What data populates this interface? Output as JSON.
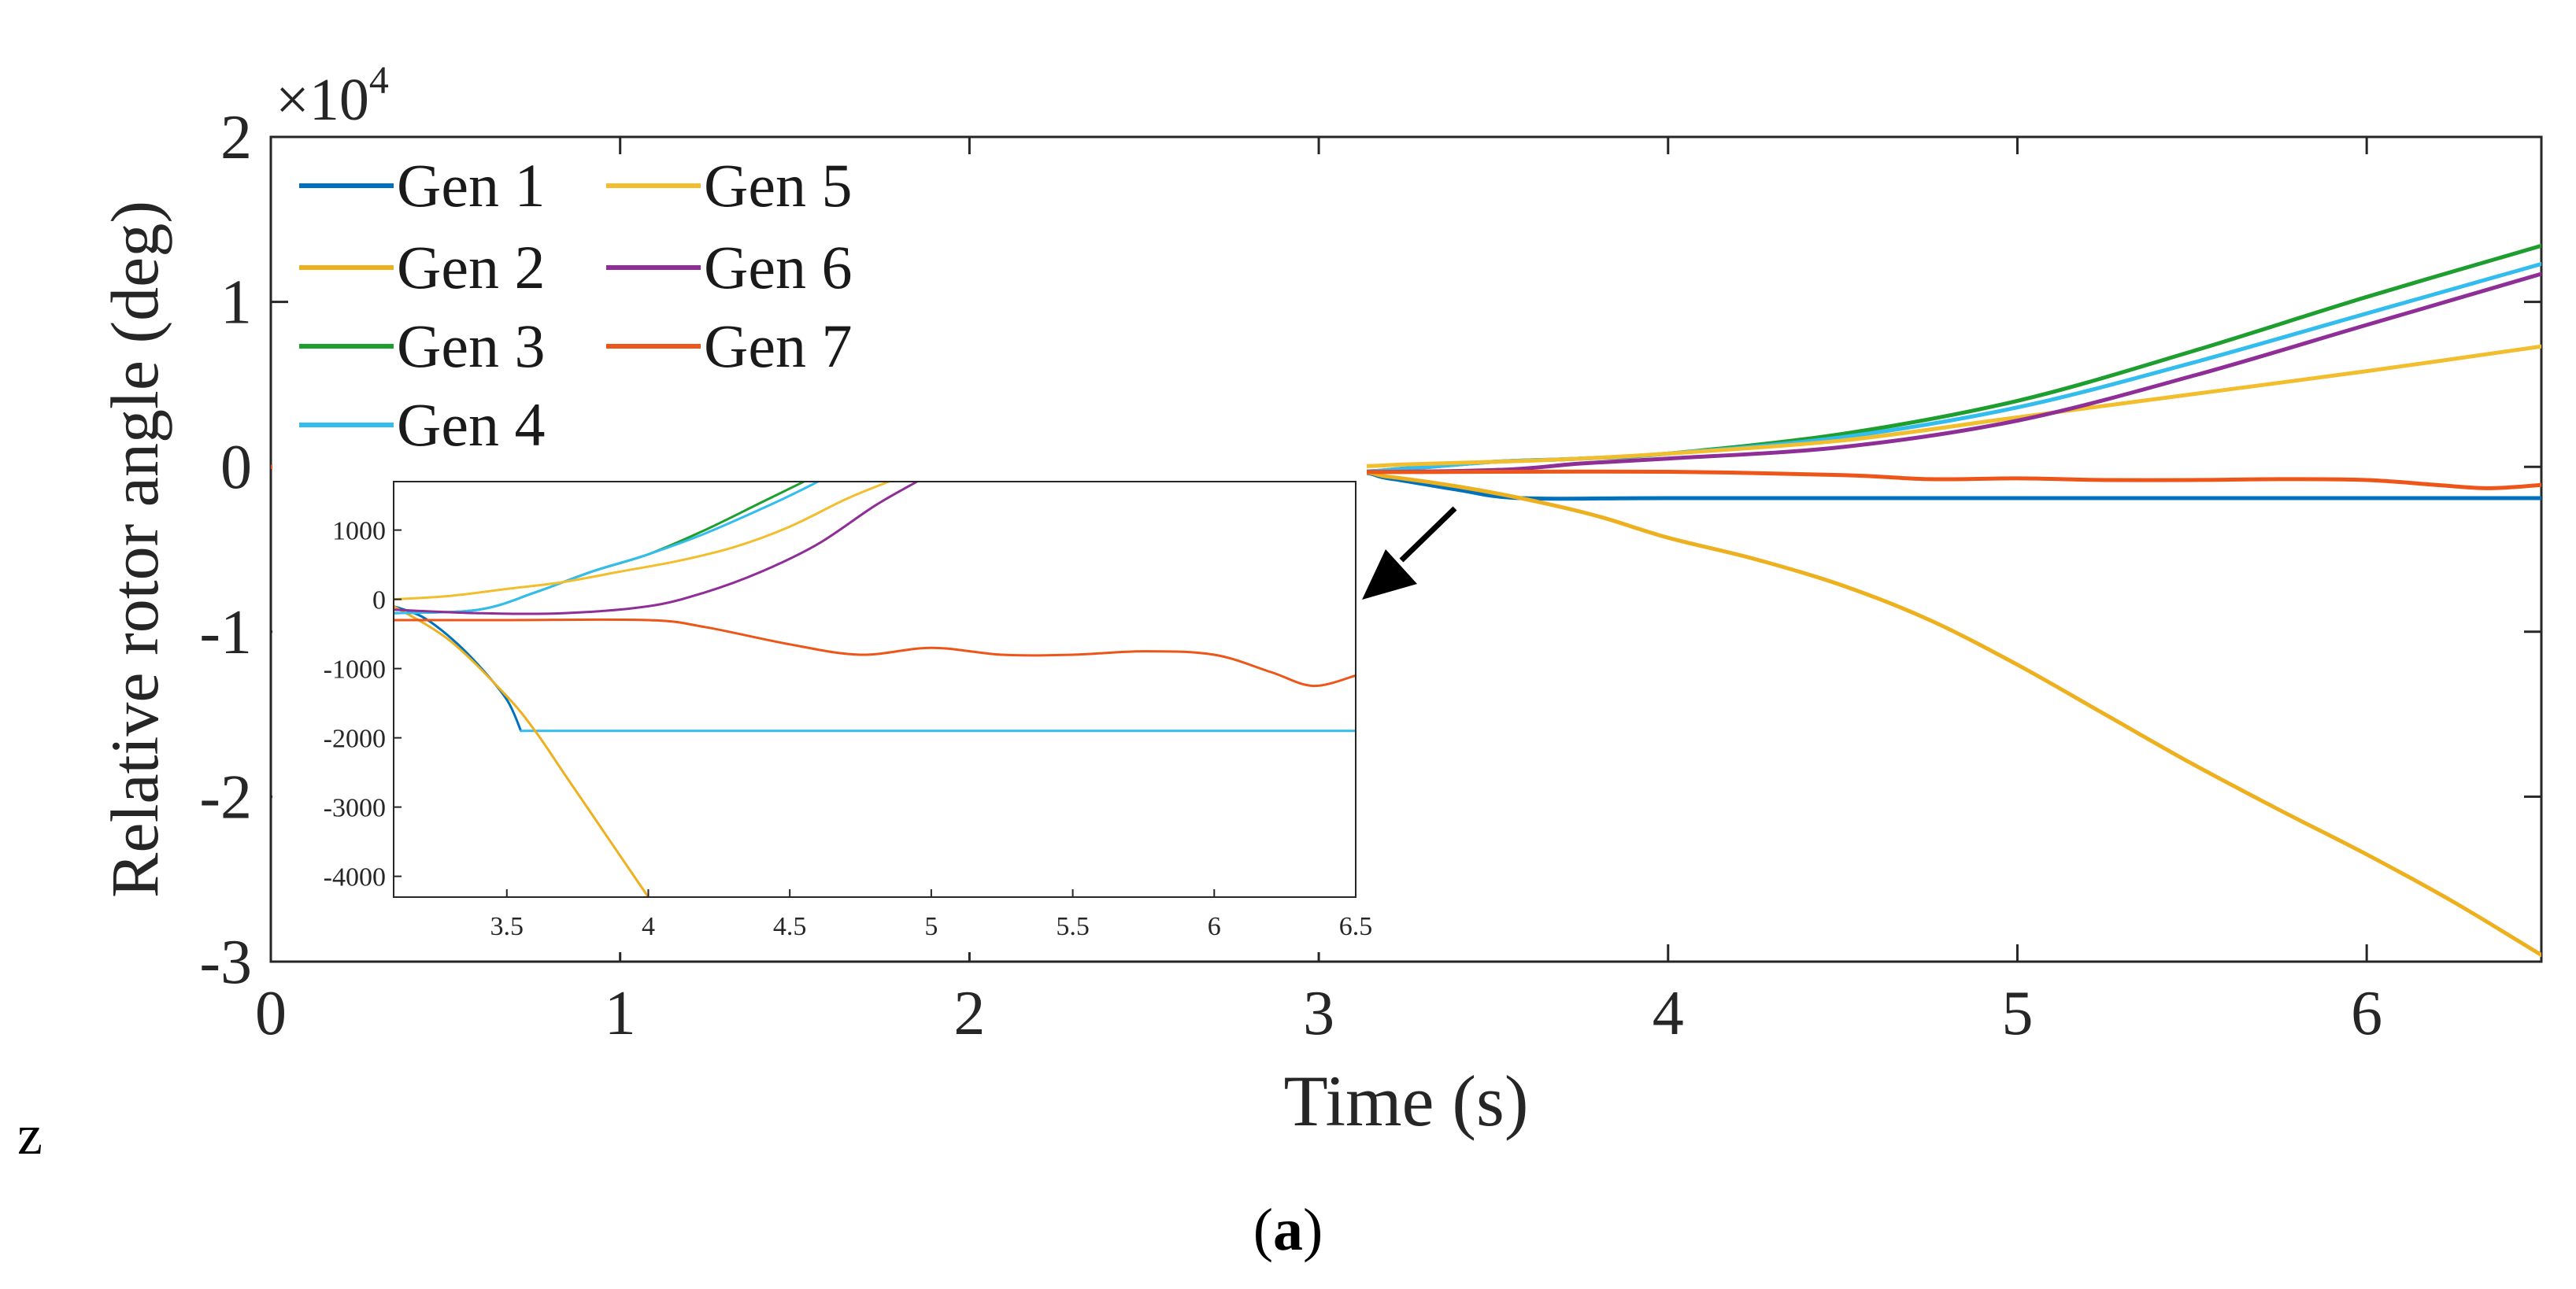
{
  "colors": {
    "gen1": "#0072BD",
    "gen2": "#EDB120",
    "gen3": "#1E9E2E",
    "gen4": "#33BDEE",
    "gen5": "#F2BE2E",
    "gen6": "#8E2E96",
    "gen7": "#EE5518",
    "axis": "#262626"
  },
  "chart_data": [
    {
      "type": "line",
      "xlabel": "Time (s)",
      "ylabel": "Relative rotor angle (deg)",
      "y_exponent_label": "×10",
      "y_exponent_power": "4",
      "xlim": [
        0,
        6.5
      ],
      "ylim": [
        -30000,
        20000
      ],
      "xticks": [
        0,
        1,
        2,
        3,
        4,
        5,
        6
      ],
      "xtick_labels": [
        "0",
        "1",
        "2",
        "3",
        "4",
        "5",
        "6"
      ],
      "yticks": [
        20000,
        10000,
        0,
        -10000,
        -20000,
        -30000
      ],
      "ytick_labels": [
        "2",
        "1",
        "0",
        "-1",
        "-2",
        "-3"
      ],
      "legend": {
        "position": "top-left",
        "columns": [
          [
            "Gen 1",
            "Gen 2",
            "Gen 3",
            "Gen 4"
          ],
          [
            "Gen 5",
            "Gen 6",
            "Gen 7"
          ]
        ]
      },
      "series": [
        {
          "name": "Gen 1",
          "color_key": "gen1",
          "x": [
            0,
            1,
            2,
            3.0,
            3.2,
            3.4,
            3.58,
            4,
            5,
            6,
            6.5
          ],
          "y": [
            0,
            0,
            0,
            -200,
            -700,
            -1400,
            -1900,
            -1900,
            -1900,
            -1900,
            -1900
          ]
        },
        {
          "name": "Gen 2",
          "color_key": "gen2",
          "x": [
            0,
            1,
            2,
            3.0,
            3.2,
            3.4,
            3.6,
            3.8,
            4.0,
            4.25,
            4.5,
            4.75,
            5.0,
            5.25,
            5.5,
            5.75,
            6.0,
            6.25,
            6.5
          ],
          "y": [
            0,
            0,
            0,
            -200,
            -600,
            -1200,
            -2000,
            -3000,
            -4300,
            -5600,
            -7200,
            -9300,
            -12000,
            -15000,
            -18000,
            -20800,
            -23500,
            -26400,
            -29600
          ]
        },
        {
          "name": "Gen 3",
          "color_key": "gen3",
          "x": [
            0,
            1,
            2,
            3.0,
            3.25,
            3.5,
            3.75,
            4.0,
            4.5,
            5.0,
            5.5,
            6.0,
            6.5
          ],
          "y": [
            0,
            0,
            0,
            -300,
            -100,
            300,
            500,
            800,
            2000,
            4000,
            7000,
            10300,
            13400
          ]
        },
        {
          "name": "Gen 4",
          "color_key": "gen4",
          "x": [
            0,
            1,
            2,
            3.0,
            3.25,
            3.5,
            3.75,
            4.0,
            4.5,
            5.0,
            5.5,
            6.0,
            6.5
          ],
          "y": [
            0,
            0,
            0,
            -300,
            -100,
            300,
            500,
            800,
            1800,
            3600,
            6300,
            9300,
            12300
          ]
        },
        {
          "name": "Gen 5",
          "color_key": "gen5",
          "x": [
            0,
            1,
            2,
            3.0,
            3.25,
            3.5,
            3.75,
            4.0,
            4.5,
            5.0,
            5.5,
            6.0,
            6.5
          ],
          "y": [
            0,
            0,
            0,
            0,
            150,
            300,
            500,
            800,
            1600,
            3000,
            4400,
            5800,
            7300
          ]
        },
        {
          "name": "Gen 6",
          "color_key": "gen6",
          "x": [
            0,
            1,
            2,
            3.0,
            3.5,
            3.75,
            4.0,
            4.5,
            5.0,
            5.5,
            6.0,
            6.5
          ],
          "y": [
            0,
            0,
            0,
            -300,
            -200,
            200,
            500,
            1200,
            2800,
            5500,
            8600,
            11700
          ]
        },
        {
          "name": "Gen 7",
          "color_key": "gen7",
          "x": [
            0,
            1,
            2,
            3.0,
            3.5,
            4.0,
            4.5,
            4.75,
            5.0,
            5.25,
            5.5,
            5.75,
            6.0,
            6.2,
            6.35,
            6.5
          ],
          "y": [
            0,
            0,
            0,
            -300,
            -300,
            -300,
            -500,
            -750,
            -700,
            -800,
            -800,
            -750,
            -800,
            -1100,
            -1300,
            -1100
          ]
        }
      ]
    },
    {
      "type": "line",
      "inset": true,
      "xlim": [
        3.1,
        6.5
      ],
      "ylim": [
        -4300,
        1700
      ],
      "xticks": [
        3.5,
        4,
        4.5,
        5,
        5.5,
        6,
        6.5
      ],
      "xtick_labels": [
        "3.5",
        "4",
        "4.5",
        "5",
        "5.5",
        "6",
        "6.5"
      ],
      "yticks": [
        1000,
        0,
        -1000,
        -2000,
        -3000,
        -4000
      ],
      "ytick_labels": [
        "1000",
        "0",
        "-1000",
        "-2000",
        "-3000",
        "-4000"
      ],
      "series": [
        {
          "name": "Gen 1",
          "color_key": "gen1",
          "x": [
            3.1,
            3.2,
            3.3,
            3.4,
            3.5,
            3.55
          ],
          "y": [
            -100,
            -250,
            -550,
            -950,
            -1450,
            -1900
          ]
        },
        {
          "name": "Gen 4 (flat)",
          "color_key": "gen4",
          "x": [
            3.55,
            4.0,
            5.0,
            6.0,
            6.5
          ],
          "y": [
            -1900,
            -1900,
            -1900,
            -1900,
            -1900
          ]
        },
        {
          "name": "Gen 2",
          "color_key": "gen2",
          "x": [
            3.1,
            3.3,
            3.5,
            3.6,
            3.7,
            3.8,
            3.9,
            4.0
          ],
          "y": [
            -100,
            -600,
            -1400,
            -1900,
            -2500,
            -3100,
            -3700,
            -4300
          ]
        },
        {
          "name": "Gen 3",
          "color_key": "gen3",
          "x": [
            3.1,
            3.4,
            3.6,
            3.8,
            4.0,
            4.2,
            4.4,
            4.55
          ],
          "y": [
            -200,
            -150,
            100,
            400,
            650,
            1000,
            1400,
            1700
          ]
        },
        {
          "name": "Gen 4",
          "color_key": "gen4",
          "x": [
            3.1,
            3.4,
            3.6,
            3.8,
            4.0,
            4.2,
            4.45,
            4.6
          ],
          "y": [
            -200,
            -150,
            100,
            400,
            650,
            950,
            1400,
            1700
          ]
        },
        {
          "name": "Gen 5",
          "color_key": "gen5",
          "x": [
            3.1,
            3.3,
            3.5,
            3.7,
            3.9,
            4.1,
            4.3,
            4.5,
            4.7,
            4.85
          ],
          "y": [
            0,
            50,
            150,
            250,
            400,
            550,
            750,
            1050,
            1450,
            1700
          ]
        },
        {
          "name": "Gen 6",
          "color_key": "gen6",
          "x": [
            3.1,
            3.4,
            3.7,
            4.0,
            4.2,
            4.4,
            4.6,
            4.8,
            4.95
          ],
          "y": [
            -150,
            -200,
            -200,
            -100,
            100,
            400,
            800,
            1350,
            1700
          ]
        },
        {
          "name": "Gen 7",
          "color_key": "gen7",
          "x": [
            3.1,
            3.5,
            4.0,
            4.2,
            4.5,
            4.75,
            5.0,
            5.25,
            5.5,
            5.75,
            6.0,
            6.2,
            6.35,
            6.5
          ],
          "y": [
            -300,
            -300,
            -300,
            -400,
            -650,
            -800,
            -700,
            -800,
            -800,
            -750,
            -800,
            -1050,
            -1250,
            -1100
          ]
        }
      ]
    }
  ],
  "margin_note": "z",
  "caption_label": "a",
  "caption_open": "(",
  "caption_close": ")"
}
